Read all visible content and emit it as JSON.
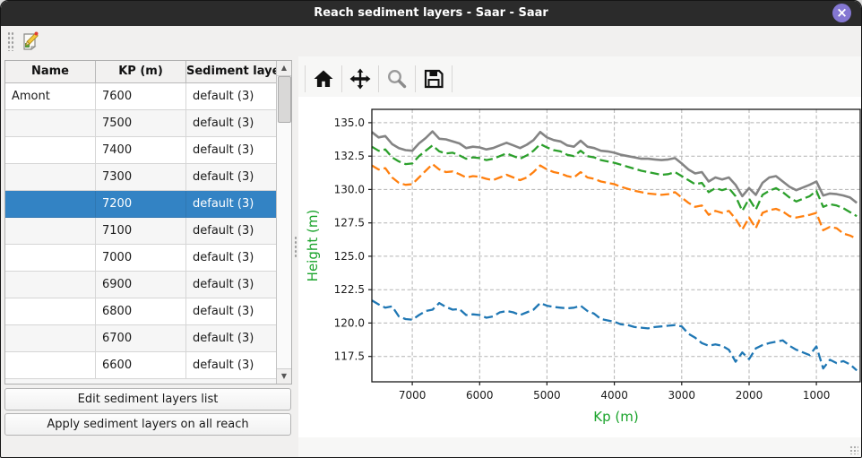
{
  "window": {
    "title": "Reach sediment layers - Saar - Saar",
    "close_glyph": "×",
    "titlebar_color": "#2b2b2b",
    "close_button_color": "#8477d2"
  },
  "table": {
    "headers": [
      "Name",
      "KP (m)",
      "Sediment layers"
    ],
    "rows": [
      {
        "name": "Amont",
        "kp": "7600",
        "layers": "default (3)"
      },
      {
        "name": "",
        "kp": "7500",
        "layers": "default (3)"
      },
      {
        "name": "",
        "kp": "7400",
        "layers": "default (3)"
      },
      {
        "name": "",
        "kp": "7300",
        "layers": "default (3)"
      },
      {
        "name": "",
        "kp": "7200",
        "layers": "default (3)"
      },
      {
        "name": "",
        "kp": "7100",
        "layers": "default (3)"
      },
      {
        "name": "",
        "kp": "7000",
        "layers": "default (3)"
      },
      {
        "name": "",
        "kp": "6900",
        "layers": "default (3)"
      },
      {
        "name": "",
        "kp": "6800",
        "layers": "default (3)"
      },
      {
        "name": "",
        "kp": "6700",
        "layers": "default (3)"
      },
      {
        "name": "",
        "kp": "6600",
        "layers": "default (3)"
      }
    ],
    "selected_kp": "7200",
    "selection_color": "#3383c4"
  },
  "buttons": {
    "edit_label": "Edit sediment layers list",
    "apply_label": "Apply sediment layers on all reach"
  },
  "icons": {
    "scroll_up": "▲",
    "scroll_down": "▼"
  },
  "chart_toolbar": {
    "icons": [
      "home",
      "pan",
      "zoom",
      "save"
    ]
  },
  "chart_data": {
    "type": "line",
    "title": "",
    "xlabel": "Kp (m)",
    "ylabel": "Height (m)",
    "axis_label_color": "#1aa32b",
    "grid": true,
    "x_inverted": true,
    "xlim": [
      7600,
      350
    ],
    "ylim": [
      115.6,
      136.0
    ],
    "xticks": [
      7000,
      6000,
      5000,
      4000,
      3000,
      2000,
      1000
    ],
    "yticks": [
      117.5,
      120.0,
      122.5,
      125.0,
      127.5,
      130.0,
      132.5,
      135.0
    ],
    "x": [
      7600,
      7500,
      7400,
      7300,
      7200,
      7100,
      7000,
      6900,
      6800,
      6700,
      6600,
      6500,
      6400,
      6300,
      6200,
      6100,
      6000,
      5900,
      5800,
      5700,
      5600,
      5500,
      5400,
      5300,
      5200,
      5100,
      5000,
      4900,
      4800,
      4700,
      4600,
      4500,
      4400,
      4300,
      4200,
      4100,
      4000,
      3900,
      3800,
      3700,
      3600,
      3500,
      3400,
      3300,
      3200,
      3100,
      3000,
      2900,
      2800,
      2700,
      2600,
      2500,
      2400,
      2300,
      2200,
      2100,
      2000,
      1900,
      1800,
      1700,
      1600,
      1500,
      1400,
      1300,
      1200,
      1100,
      1000,
      900,
      800,
      700,
      600,
      500,
      400
    ],
    "series": [
      {
        "name": "grey-solid-line",
        "color": "#848484",
        "style": "solid",
        "width": 2.6,
        "values": [
          134.3,
          133.9,
          134.0,
          133.4,
          133.1,
          132.95,
          132.9,
          133.45,
          133.85,
          134.35,
          133.8,
          133.75,
          133.6,
          133.45,
          133.1,
          133.2,
          133.15,
          133.0,
          133.1,
          133.3,
          133.5,
          133.3,
          133.1,
          133.35,
          133.7,
          134.3,
          133.9,
          133.7,
          133.6,
          133.3,
          133.2,
          133.65,
          133.2,
          133.1,
          132.9,
          132.85,
          132.75,
          132.6,
          132.5,
          132.4,
          132.3,
          132.3,
          132.25,
          132.2,
          132.25,
          132.35,
          131.95,
          131.5,
          131.2,
          131.3,
          130.6,
          130.9,
          130.75,
          130.9,
          130.35,
          129.5,
          130.1,
          129.6,
          130.5,
          130.9,
          131.0,
          130.6,
          130.2,
          129.95,
          130.15,
          130.35,
          130.6,
          129.55,
          129.7,
          129.65,
          129.55,
          129.4,
          129.0
        ]
      },
      {
        "name": "green-dashed-line",
        "color": "#2ca02c",
        "style": "dashed",
        "width": 2.3,
        "values": [
          133.2,
          132.9,
          133.0,
          132.4,
          132.1,
          131.9,
          131.95,
          132.5,
          132.9,
          133.3,
          132.85,
          132.7,
          132.75,
          132.55,
          132.3,
          132.4,
          132.35,
          132.2,
          132.3,
          132.5,
          132.7,
          132.5,
          132.3,
          132.55,
          132.9,
          133.4,
          133.15,
          132.95,
          132.85,
          132.6,
          132.5,
          132.9,
          132.5,
          132.4,
          132.2,
          132.1,
          132.0,
          131.85,
          131.7,
          131.55,
          131.4,
          131.3,
          131.2,
          131.1,
          131.15,
          131.3,
          131.0,
          130.7,
          130.4,
          130.5,
          129.8,
          130.1,
          129.95,
          130.1,
          129.5,
          128.4,
          129.3,
          128.5,
          129.6,
          129.9,
          130.1,
          129.8,
          129.4,
          129.1,
          129.3,
          129.5,
          129.9,
          128.7,
          128.9,
          128.8,
          128.6,
          128.3,
          128.0
        ]
      },
      {
        "name": "orange-dashed-line",
        "color": "#ff7f0e",
        "style": "dashed",
        "width": 2.3,
        "values": [
          131.8,
          131.5,
          131.6,
          130.9,
          130.5,
          130.35,
          130.4,
          130.9,
          131.4,
          131.9,
          131.5,
          131.3,
          131.35,
          131.15,
          130.9,
          131.0,
          130.95,
          130.8,
          130.7,
          130.9,
          131.1,
          130.9,
          130.7,
          130.9,
          131.3,
          131.8,
          131.5,
          131.3,
          131.2,
          131.0,
          130.9,
          131.3,
          130.9,
          130.8,
          130.6,
          130.5,
          130.4,
          130.2,
          130.05,
          129.9,
          129.8,
          129.7,
          129.65,
          129.6,
          129.65,
          129.8,
          129.4,
          129.0,
          128.7,
          128.8,
          128.1,
          128.4,
          128.25,
          128.4,
          127.8,
          127.0,
          127.9,
          127.1,
          128.25,
          128.45,
          128.55,
          128.35,
          128.0,
          127.9,
          128.0,
          128.1,
          128.25,
          126.95,
          127.2,
          127.1,
          126.7,
          126.55,
          126.3
        ]
      },
      {
        "name": "blue-dashed-line",
        "color": "#1f77b4",
        "style": "dashed",
        "width": 2.3,
        "values": [
          121.7,
          121.4,
          121.15,
          121.25,
          120.5,
          120.3,
          120.25,
          120.6,
          120.9,
          121.0,
          121.5,
          121.2,
          121.0,
          121.05,
          120.6,
          120.65,
          120.6,
          120.4,
          120.5,
          120.8,
          120.9,
          120.8,
          120.6,
          120.8,
          121.0,
          121.5,
          121.3,
          121.2,
          121.15,
          121.1,
          121.15,
          121.3,
          120.9,
          120.7,
          120.3,
          120.2,
          120.1,
          119.9,
          119.85,
          119.7,
          119.65,
          119.6,
          119.7,
          119.75,
          119.8,
          119.85,
          119.75,
          119.2,
          118.9,
          118.5,
          118.3,
          118.4,
          118.3,
          118.0,
          117.1,
          117.8,
          117.3,
          118.1,
          118.35,
          118.5,
          118.6,
          118.7,
          118.3,
          118.0,
          117.8,
          117.6,
          118.25,
          116.6,
          117.25,
          117.0,
          117.15,
          116.9,
          116.45
        ]
      }
    ]
  }
}
